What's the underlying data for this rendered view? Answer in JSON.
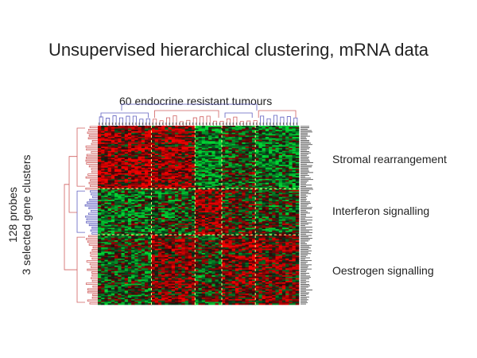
{
  "title": "Unsupervised hierarchical clustering, mRNA data",
  "column_label": "60 endocrine resistant tumours",
  "row_label_line1": "128 probes",
  "row_label_line2": "3 selected gene clusters",
  "clusters": [
    {
      "label": "Stromal rearrangement"
    },
    {
      "label": "Interferon signalling"
    },
    {
      "label": "Oestrogen signalling"
    }
  ],
  "heatmap": {
    "rows": 128,
    "columns": 60,
    "low_color": "#00cc33",
    "mid_color": "#000000",
    "high_color": "#e01010"
  }
}
